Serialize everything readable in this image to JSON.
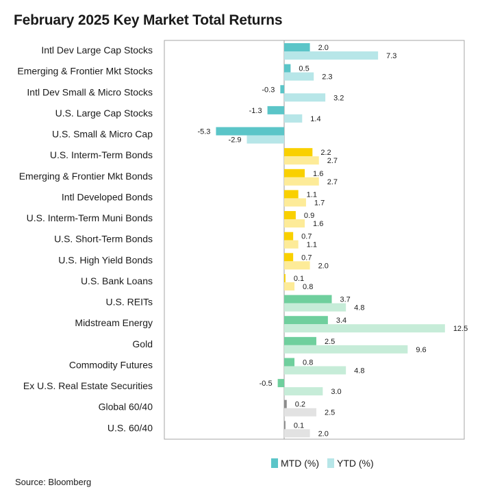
{
  "title": "February 2025 Key Market Total Returns",
  "source": "Source: Bloomberg",
  "chart_data": {
    "type": "bar",
    "orientation": "horizontal",
    "categories": [
      "Intl Dev Large Cap Stocks",
      "Emerging & Frontier Mkt Stocks",
      "Intl Dev Small & Micro Stocks",
      "U.S. Large Cap Stocks",
      "U.S. Small & Micro Cap",
      "U.S. Interm-Term Bonds",
      "Emerging & Frontier Mkt Bonds",
      "Intl Developed Bonds",
      "U.S. Interm-Term Muni Bonds",
      "U.S. Short-Term Bonds",
      "U.S. High Yield Bonds",
      "U.S. Bank Loans",
      "U.S. REITs",
      "Midstream Energy",
      "Gold",
      "Commodity Futures",
      "Ex U.S. Real Estate Securities",
      "Global 60/40",
      "U.S. 60/40"
    ],
    "series": [
      {
        "name": "MTD (%)",
        "values": [
          2.0,
          0.5,
          -0.3,
          -1.3,
          -5.3,
          2.2,
          1.6,
          1.1,
          0.9,
          0.7,
          0.7,
          0.1,
          3.7,
          3.4,
          2.5,
          0.8,
          -0.5,
          0.2,
          0.1
        ]
      },
      {
        "name": "YTD (%)",
        "values": [
          7.3,
          2.3,
          3.2,
          1.4,
          -2.9,
          2.7,
          2.7,
          1.7,
          1.6,
          1.1,
          2.0,
          0.8,
          4.8,
          12.5,
          9.6,
          4.8,
          3.0,
          2.5,
          2.0
        ]
      }
    ],
    "group_colors": {
      "stocks": {
        "mtd": "#5bc5c8",
        "ytd": "#b7e6e8"
      },
      "bonds": {
        "mtd": "#f9d000",
        "ytd": "#fdeb98"
      },
      "real_assets": {
        "mtd": "#6fcf9d",
        "ytd": "#c6ecd8"
      },
      "balanced": {
        "mtd": "#8c8c8c",
        "ytd": "#e2e2e2"
      }
    },
    "category_groups": [
      "stocks",
      "stocks",
      "stocks",
      "stocks",
      "stocks",
      "bonds",
      "bonds",
      "bonds",
      "bonds",
      "bonds",
      "bonds",
      "bonds",
      "real_assets",
      "real_assets",
      "real_assets",
      "real_assets",
      "real_assets",
      "balanced",
      "balanced"
    ],
    "legend": {
      "position": "bottom",
      "items": [
        "MTD (%)",
        "YTD (%)"
      ],
      "colors": [
        "#5bc5c8",
        "#b7e6e8"
      ]
    },
    "xlim": [
      -10,
      14
    ],
    "grid": false
  }
}
